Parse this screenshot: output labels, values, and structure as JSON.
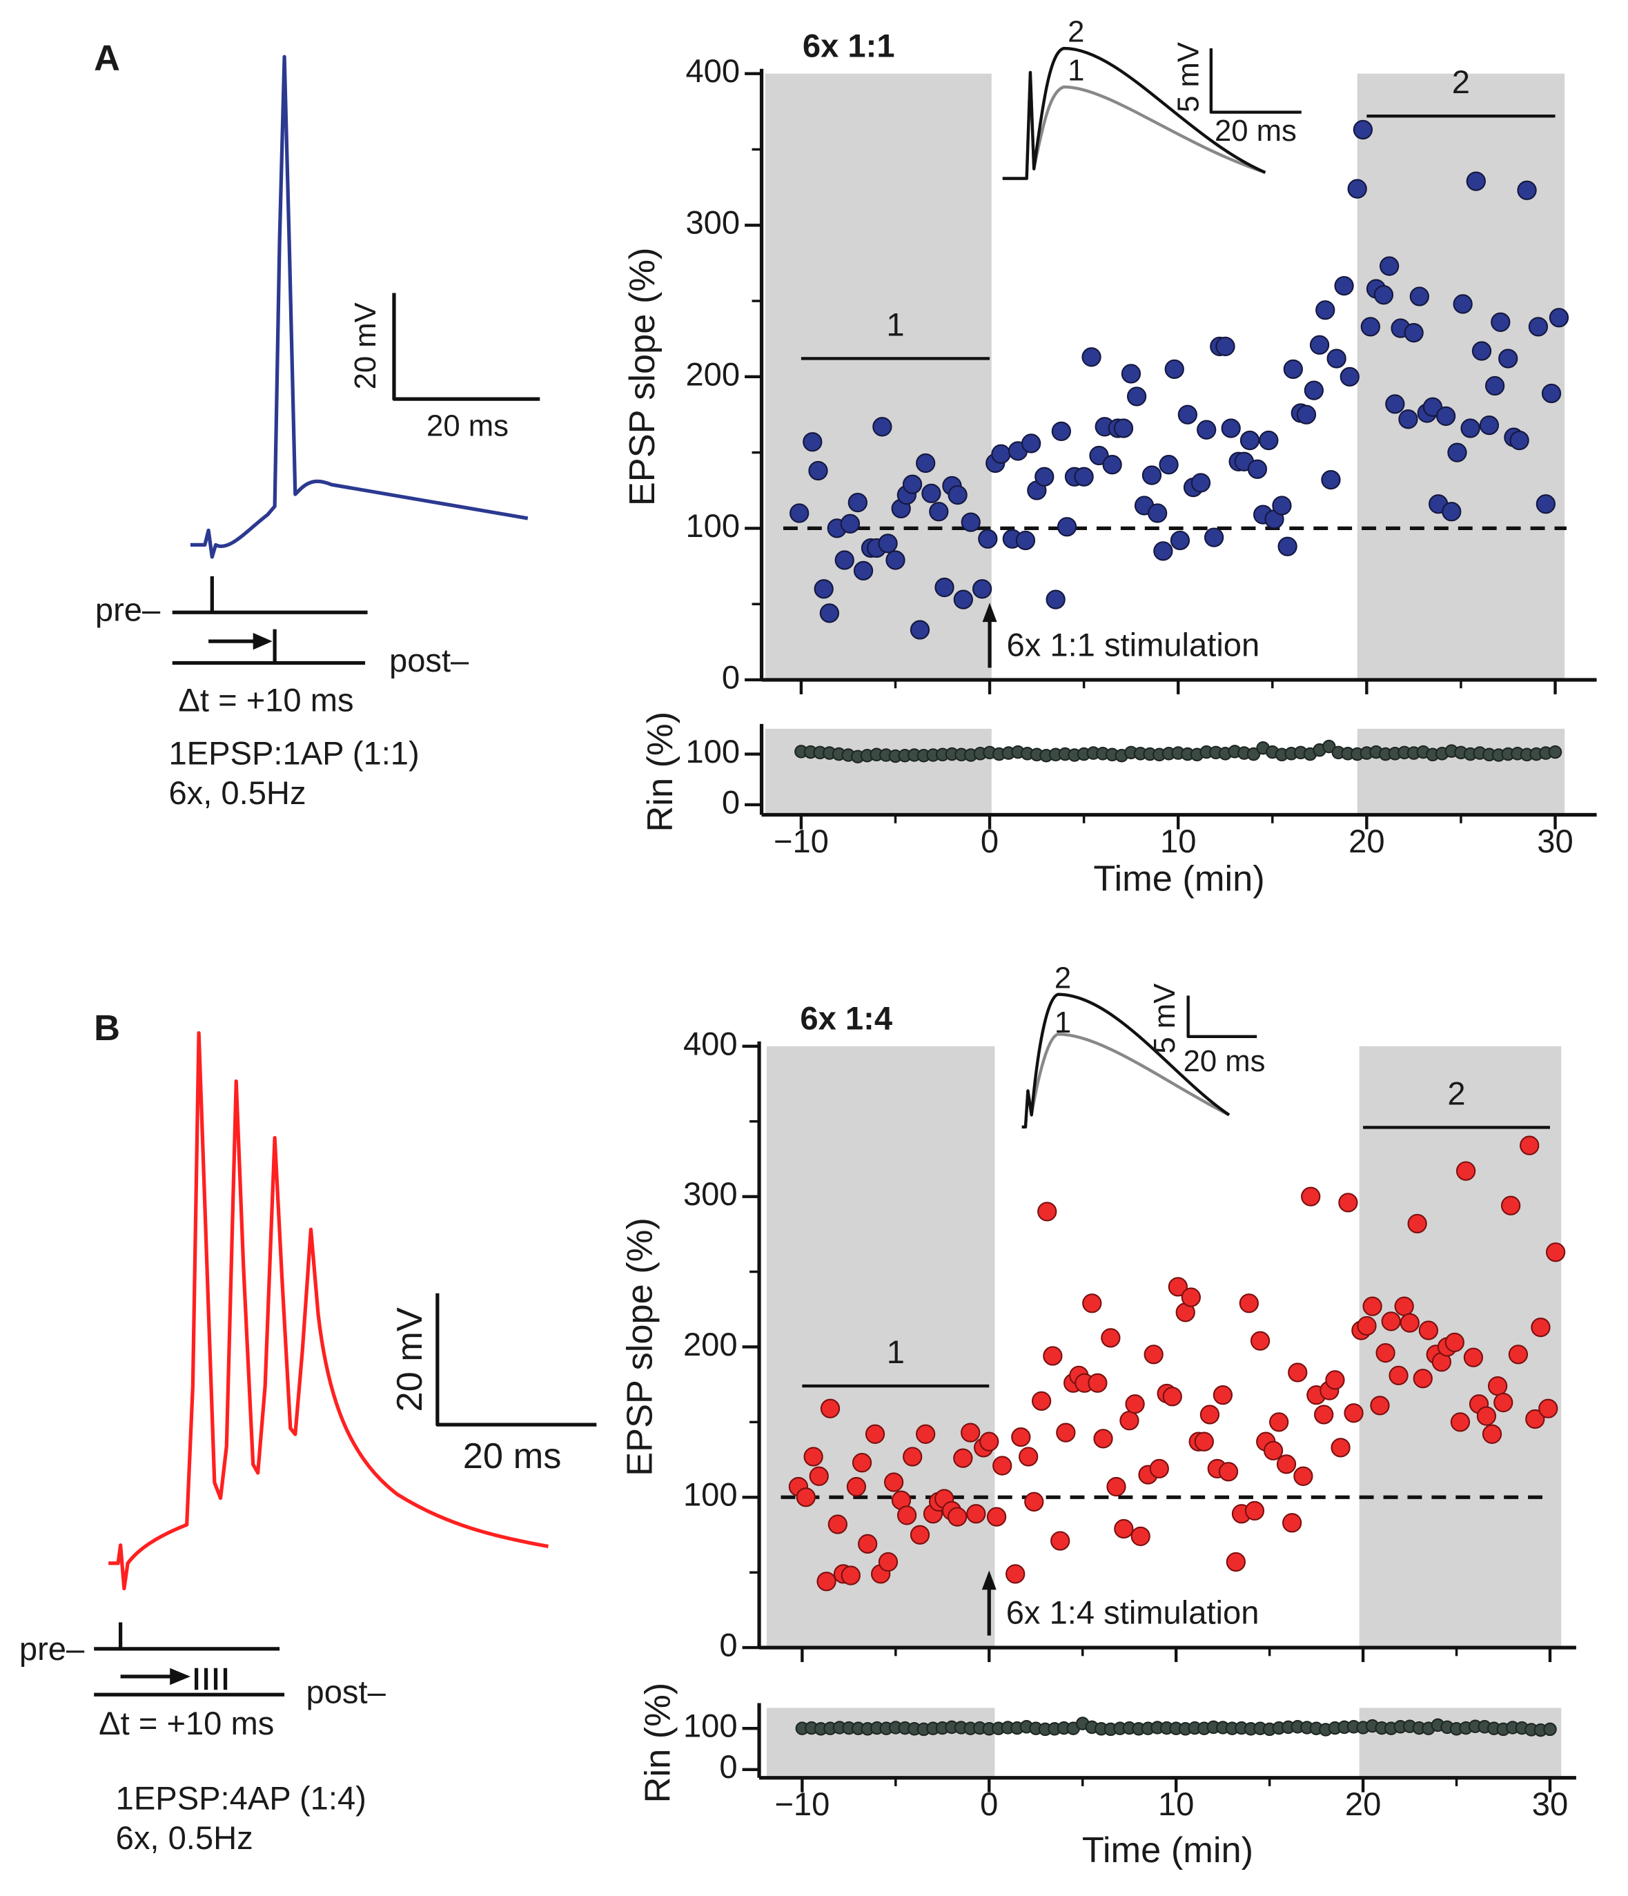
{
  "panels": [
    {
      "label": "A",
      "scale_v": "20 mV",
      "scale_t": "20 ms",
      "pre": "pre–",
      "post": "post–",
      "dt": "Δt = +10 ms",
      "protocol": "1EPSP:1AP (1:1)",
      "freq": "6x, 0.5Hz",
      "inset": {
        "trace1": "1",
        "trace2": "2",
        "scale_v": "5 mV",
        "scale_t": "20 ms"
      }
    },
    {
      "label": "B",
      "scale_v": "20 mV",
      "scale_t": "20 ms",
      "pre": "pre–",
      "post": "post–",
      "dt": "Δt = +10 ms",
      "protocol": "1EPSP:4AP (1:4)",
      "freq": "6x, 0.5Hz",
      "inset": {
        "trace1": "1",
        "trace2": "2",
        "scale_v": "5 mV",
        "scale_t": "20 ms"
      }
    }
  ],
  "chart_data": [
    {
      "type": "scatter",
      "title": "6x 1:1",
      "ylabel": "EPSP slope (%)",
      "xlim": [
        -12.1,
        32.2
      ],
      "ylim": [
        0,
        400
      ],
      "xtick_marks": [
        -10,
        0,
        10,
        20,
        30
      ],
      "xminor": [
        -5,
        5,
        15,
        25
      ],
      "yticks": [
        0,
        100,
        200,
        300,
        400
      ],
      "yminor": [
        50,
        150,
        250,
        350
      ],
      "hline": 100,
      "shaded": [
        [
          -11.9,
          0.1
        ],
        [
          19.5,
          30.5
        ]
      ],
      "shade_color": "#d4d4d4",
      "periods": [
        {
          "label": "1",
          "x": [
            -10,
            0
          ],
          "y": 212
        },
        {
          "label": "2",
          "x": [
            20,
            30
          ],
          "y": 372
        }
      ],
      "annotation": {
        "text": "6x 1:1 stimulation",
        "x": 0
      },
      "series": [
        {
          "color": "#2b3990",
          "edge": "#15183f",
          "x": [
            -10.1,
            -9.4,
            -9.1,
            -8.8,
            -8.5,
            -8.1,
            -7.7,
            -7.4,
            -7.0,
            -6.7,
            -6.3,
            -6.0,
            -5.7,
            -5.4,
            -5.0,
            -4.7,
            -4.4,
            -4.1,
            -3.7,
            -3.4,
            -3.1,
            -2.7,
            -2.4,
            -2.0,
            -1.7,
            -1.4,
            -1.0,
            -0.4,
            -0.1,
            0.3,
            0.6,
            1.2,
            1.5,
            1.9,
            2.2,
            2.5,
            2.9,
            3.5,
            3.8,
            4.1,
            4.5,
            5.0,
            5.4,
            5.8,
            6.1,
            6.5,
            6.8,
            7.1,
            7.5,
            7.8,
            8.2,
            8.6,
            8.9,
            9.2,
            9.5,
            9.8,
            10.1,
            10.5,
            10.8,
            11.2,
            11.5,
            11.9,
            12.2,
            12.5,
            12.8,
            13.2,
            13.5,
            13.8,
            14.2,
            14.5,
            14.8,
            15.1,
            15.5,
            15.8,
            16.1,
            16.5,
            16.8,
            17.2,
            17.5,
            17.8,
            18.1,
            18.4,
            18.8,
            19.1,
            19.5,
            19.8,
            20.2,
            20.5,
            20.9,
            21.2,
            21.5,
            21.8,
            22.2,
            22.5,
            22.8,
            23.2,
            23.5,
            23.8,
            24.2,
            24.5,
            24.8,
            25.1,
            25.5,
            25.8,
            26.1,
            26.5,
            26.8,
            27.1,
            27.5,
            27.8,
            28.1,
            28.5,
            29.1,
            29.5,
            29.8,
            30.2
          ],
          "values": [
            110,
            157,
            138,
            60,
            44,
            100,
            79,
            103,
            117,
            72,
            87,
            87,
            167,
            90,
            79,
            113,
            122,
            129,
            33,
            143,
            123,
            111,
            61,
            128,
            122,
            53,
            104,
            60,
            93,
            143,
            149,
            93,
            151,
            92,
            156,
            125,
            134,
            53,
            164,
            101,
            134,
            134,
            213,
            148,
            167,
            142,
            166,
            166,
            202,
            187,
            115,
            135,
            110,
            85,
            142,
            205,
            92,
            175,
            127,
            130,
            165,
            94,
            220,
            220,
            166,
            144,
            144,
            158,
            139,
            109,
            158,
            106,
            115,
            88,
            205,
            176,
            175,
            191,
            221,
            244,
            132,
            212,
            260,
            200,
            324,
            363,
            233,
            258,
            254,
            273,
            182,
            232,
            172,
            229,
            253,
            176,
            180,
            116,
            174,
            111,
            150,
            248,
            166,
            329,
            217,
            168,
            194,
            236,
            212,
            160,
            158,
            323,
            233,
            116,
            189,
            239
          ]
        }
      ]
    },
    {
      "type": "scatter",
      "ylabel": "Rin (%)",
      "xlabel": "Time (min)",
      "xlim": [
        -12.1,
        32.2
      ],
      "ylim": [
        -20,
        150
      ],
      "xticks": [
        {
          "value": -10,
          "label": "−10"
        },
        0,
        10,
        20,
        30
      ],
      "xminor": [
        -5,
        5,
        15,
        25
      ],
      "yticks": [
        0,
        100
      ],
      "shaded": [
        [
          -11.9,
          0.1
        ],
        [
          19.5,
          30.5
        ]
      ],
      "shade_color": "#d4d4d4",
      "series": [
        {
          "color": "#3c4a44",
          "edge": "#1e2622",
          "x": [
            -10,
            -9.5,
            -9,
            -8.5,
            -8,
            -7.5,
            -7,
            -6.5,
            -6,
            -5.5,
            -5,
            -4.5,
            -4,
            -3.5,
            -3,
            -2.5,
            -2,
            -1.5,
            -1,
            -0.5,
            0,
            0.5,
            1,
            1.5,
            2,
            2.5,
            3,
            3.5,
            4,
            4.5,
            5,
            5.5,
            6,
            6.5,
            7,
            7.5,
            8,
            8.5,
            9,
            9.5,
            10,
            10.5,
            11,
            11.5,
            12,
            12.5,
            13,
            13.5,
            14,
            14.5,
            15,
            15.5,
            16,
            16.5,
            17,
            17.5,
            18,
            18.5,
            19,
            19.5,
            20,
            20.5,
            21,
            21.5,
            22,
            22.5,
            23,
            23.5,
            24,
            24.5,
            25,
            25.5,
            26,
            26.5,
            27,
            27.5,
            28,
            28.5,
            29,
            29.5,
            30
          ],
          "values": [
            105,
            104,
            103,
            102,
            100,
            98,
            95,
            97,
            99,
            98,
            96,
            97,
            98,
            97,
            98,
            99,
            100,
            99,
            98,
            101,
            103,
            100,
            102,
            104,
            101,
            99,
            97,
            99,
            100,
            98,
            100,
            102,
            101,
            99,
            97,
            103,
            101,
            100,
            99,
            101,
            102,
            100,
            99,
            104,
            103,
            101,
            105,
            102,
            100,
            112,
            104,
            99,
            101,
            103,
            100,
            108,
            115,
            103,
            101,
            100,
            102,
            104,
            100,
            101,
            103,
            102,
            104,
            99,
            101,
            106,
            103,
            100,
            102,
            99,
            98,
            100,
            101,
            99,
            100,
            102,
            104
          ]
        }
      ]
    },
    {
      "type": "scatter",
      "title": "6x 1:4",
      "ylabel": "EPSP slope (%)",
      "xlim": [
        -12.3,
        31.4
      ],
      "ylim": [
        0,
        400
      ],
      "xtick_marks": [
        -10,
        0,
        10,
        20,
        30
      ],
      "xminor": [
        -5,
        5,
        15,
        25
      ],
      "yticks": [
        0,
        100,
        200,
        300,
        400
      ],
      "yminor": [
        50,
        150,
        250,
        350
      ],
      "hline": 100,
      "shaded": [
        [
          -11.9,
          0.3
        ],
        [
          19.8,
          30.6
        ]
      ],
      "shade_color": "#d4d4d4",
      "periods": [
        {
          "label": "1",
          "x": [
            -10,
            0
          ],
          "y": 174
        },
        {
          "label": "2",
          "x": [
            20,
            30
          ],
          "y": 346
        }
      ],
      "annotation": {
        "text": "6x 1:4 stimulation",
        "x": 0
      },
      "series": [
        {
          "color": "#ee2b2b",
          "edge": "#7a1010",
          "x": [
            -10.2,
            -9.8,
            -9.4,
            -9.1,
            -8.7,
            -8.5,
            -8.1,
            -7.8,
            -7.4,
            -7.1,
            -6.8,
            -6.5,
            -6.1,
            -5.8,
            -5.4,
            -5.1,
            -4.7,
            -4.4,
            -4.1,
            -3.7,
            -3.4,
            -3.0,
            -2.7,
            -2.4,
            -2.0,
            -1.7,
            -1.4,
            -1.0,
            -0.7,
            -0.3,
            0,
            0.4,
            0.7,
            1.4,
            1.7,
            2.1,
            2.4,
            2.8,
            3.1,
            3.4,
            3.8,
            4.1,
            4.5,
            4.8,
            5.1,
            5.5,
            5.8,
            6.1,
            6.5,
            6.8,
            7.2,
            7.5,
            7.8,
            8.1,
            8.5,
            8.8,
            9.1,
            9.5,
            9.8,
            10.1,
            10.5,
            10.8,
            11.2,
            11.5,
            11.8,
            12.2,
            12.5,
            12.8,
            13.2,
            13.5,
            13.9,
            14.2,
            14.5,
            14.8,
            15.2,
            15.5,
            15.9,
            16.2,
            16.5,
            16.8,
            17.2,
            17.5,
            17.9,
            18.2,
            18.5,
            18.8,
            19.2,
            19.5,
            19.9,
            20.2,
            20.5,
            20.9,
            21.2,
            21.5,
            21.9,
            22.2,
            22.5,
            22.9,
            23.2,
            23.5,
            23.9,
            24.2,
            24.5,
            24.9,
            25.2,
            25.5,
            25.9,
            26.2,
            26.6,
            26.9,
            27.2,
            27.5,
            27.9,
            28.3,
            28.9,
            29.2,
            29.5,
            29.9,
            30.3
          ],
          "values": [
            107,
            100,
            127,
            114,
            44,
            159,
            82,
            49,
            48,
            107,
            123,
            69,
            142,
            49,
            57,
            110,
            98,
            88,
            127,
            75,
            142,
            89,
            97,
            99,
            91,
            87,
            126,
            143,
            89,
            133,
            137,
            87,
            121,
            49,
            140,
            127,
            97,
            164,
            290,
            194,
            71,
            143,
            176,
            181,
            176,
            229,
            176,
            139,
            206,
            107,
            79,
            151,
            162,
            74,
            115,
            195,
            119,
            169,
            167,
            240,
            223,
            233,
            137,
            137,
            155,
            119,
            168,
            117,
            57,
            89,
            229,
            91,
            204,
            137,
            131,
            150,
            122,
            83,
            183,
            114,
            300,
            168,
            155,
            171,
            178,
            133,
            296,
            156,
            211,
            214,
            227,
            161,
            196,
            217,
            181,
            227,
            216,
            282,
            179,
            211,
            195,
            190,
            200,
            203,
            150,
            317,
            193,
            162,
            154,
            142,
            174,
            163,
            294,
            195,
            334,
            152,
            213,
            159,
            263
          ]
        }
      ]
    },
    {
      "type": "scatter",
      "ylabel": "Rin (%)",
      "xlabel": "Time (min)",
      "xlim": [
        -12.3,
        31.4
      ],
      "ylim": [
        -20,
        150
      ],
      "xticks": [
        {
          "value": -10,
          "label": "−10"
        },
        0,
        10,
        20,
        30
      ],
      "xminor": [
        -5,
        5,
        15,
        25
      ],
      "yticks": [
        0,
        100
      ],
      "shaded": [
        [
          -11.9,
          0.3
        ],
        [
          19.8,
          30.6
        ]
      ],
      "shade_color": "#d4d4d4",
      "series": [
        {
          "color": "#3c4a44",
          "edge": "#1e2622",
          "x": [
            -10,
            -9.5,
            -9,
            -8.5,
            -8,
            -7.5,
            -7,
            -6.5,
            -6,
            -5.5,
            -5,
            -4.5,
            -4,
            -3.5,
            -3,
            -2.5,
            -2,
            -1.5,
            -1,
            -0.5,
            0,
            0.5,
            1,
            1.5,
            2,
            2.5,
            3,
            3.5,
            4,
            4.5,
            5,
            5.5,
            6,
            6.5,
            7,
            7.5,
            8,
            8.5,
            9,
            9.5,
            10,
            10.5,
            11,
            11.5,
            12,
            12.5,
            13,
            13.5,
            14,
            14.5,
            15,
            15.5,
            16,
            16.5,
            17,
            17.5,
            18,
            18.5,
            19,
            19.5,
            20,
            20.5,
            21,
            21.5,
            22,
            22.5,
            23,
            23.5,
            24,
            24.5,
            25,
            25.5,
            26,
            26.5,
            27,
            27.5,
            28,
            28.5,
            29,
            29.5,
            30
          ],
          "values": [
            100,
            101,
            99,
            100,
            102,
            101,
            100,
            99,
            101,
            100,
            102,
            101,
            99,
            98,
            100,
            101,
            103,
            102,
            100,
            101,
            99,
            100,
            102,
            101,
            104,
            100,
            98,
            99,
            101,
            100,
            112,
            103,
            99,
            98,
            100,
            101,
            99,
            100,
            102,
            101,
            100,
            99,
            101,
            100,
            103,
            102,
            100,
            101,
            99,
            100,
            98,
            101,
            103,
            104,
            102,
            100,
            97,
            101,
            103,
            104,
            102,
            106,
            101,
            100,
            104,
            105,
            101,
            100,
            108,
            103,
            99,
            101,
            105,
            104,
            100,
            98,
            102,
            101,
            97,
            96,
            98
          ]
        }
      ]
    }
  ]
}
